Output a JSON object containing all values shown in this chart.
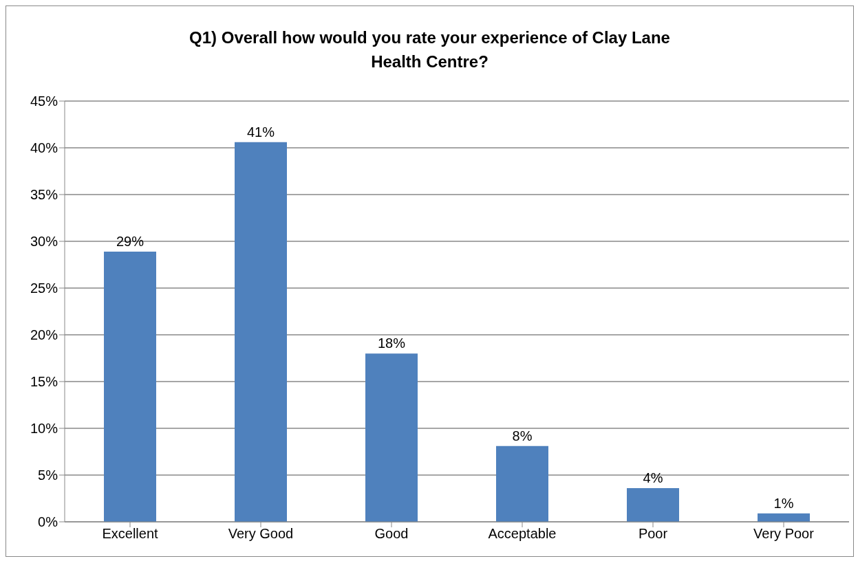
{
  "chart_data": {
    "type": "bar",
    "title": "Q1) Overall how would you rate your experience of Clay Lane Health Centre?",
    "categories": [
      "Excellent",
      "Very Good",
      "Good",
      "Acceptable",
      "Poor",
      "Very Poor"
    ],
    "values": [
      28.9,
      40.6,
      18.0,
      8.1,
      3.6,
      0.9
    ],
    "value_labels": [
      "29%",
      "41%",
      "18%",
      "8%",
      "4%",
      "1%"
    ],
    "color": "#4f81bd",
    "ylim": [
      0,
      45
    ],
    "yticks": [
      {
        "value": 0,
        "label": "0%"
      },
      {
        "value": 5,
        "label": "5%"
      },
      {
        "value": 10,
        "label": "10%"
      },
      {
        "value": 15,
        "label": "15%"
      },
      {
        "value": 20,
        "label": "20%"
      },
      {
        "value": 25,
        "label": "25%"
      },
      {
        "value": 30,
        "label": "30%"
      },
      {
        "value": 35,
        "label": "35%"
      },
      {
        "value": 40,
        "label": "40%"
      },
      {
        "value": 45,
        "label": "45%"
      }
    ],
    "grid": "y",
    "legend": false
  }
}
